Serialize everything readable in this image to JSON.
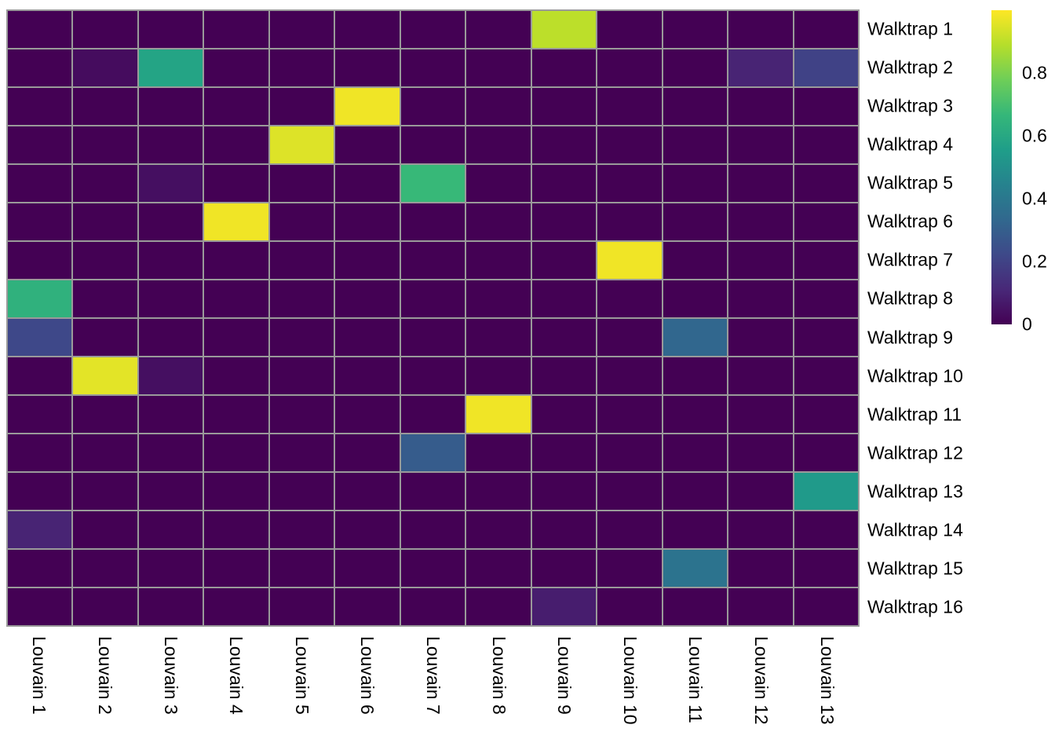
{
  "chart_data": {
    "type": "heatmap",
    "title": "",
    "rows": [
      "Walktrap 1",
      "Walktrap 2",
      "Walktrap 3",
      "Walktrap 4",
      "Walktrap 5",
      "Walktrap 6",
      "Walktrap 7",
      "Walktrap 8",
      "Walktrap 9",
      "Walktrap 10",
      "Walktrap 11",
      "Walktrap 12",
      "Walktrap 13",
      "Walktrap 14",
      "Walktrap 15",
      "Walktrap 16"
    ],
    "columns": [
      "Louvain 1",
      "Louvain 2",
      "Louvain 3",
      "Louvain 4",
      "Louvain 5",
      "Louvain 6",
      "Louvain 7",
      "Louvain 8",
      "Louvain 9",
      "Louvain 10",
      "Louvain 11",
      "Louvain 12",
      "Louvain 13"
    ],
    "matrix": [
      [
        0,
        0,
        0,
        0,
        0,
        0,
        0,
        0,
        0.9,
        0,
        0,
        0,
        0
      ],
      [
        0,
        0.03,
        0.58,
        0,
        0,
        0,
        0,
        0,
        0,
        0,
        0,
        0.1,
        0.2
      ],
      [
        0,
        0,
        0,
        0,
        0,
        0.98,
        0,
        0,
        0,
        0,
        0,
        0,
        0
      ],
      [
        0,
        0,
        0,
        0,
        0.95,
        0,
        0,
        0,
        0,
        0,
        0,
        0,
        0
      ],
      [
        0,
        0,
        0.04,
        0,
        0,
        0,
        0.67,
        0,
        0,
        0,
        0,
        0,
        0
      ],
      [
        0,
        0,
        0,
        0.98,
        0,
        0,
        0,
        0,
        0,
        0,
        0,
        0,
        0
      ],
      [
        0,
        0,
        0,
        0,
        0,
        0,
        0,
        0,
        0,
        0.98,
        0,
        0,
        0
      ],
      [
        0.64,
        0,
        0,
        0,
        0,
        0,
        0,
        0,
        0,
        0,
        0,
        0,
        0
      ],
      [
        0.22,
        0,
        0,
        0,
        0,
        0,
        0,
        0,
        0,
        0,
        0.33,
        0,
        0
      ],
      [
        0,
        0.96,
        0.04,
        0,
        0,
        0,
        0,
        0,
        0,
        0,
        0,
        0,
        0
      ],
      [
        0,
        0,
        0,
        0,
        0,
        0,
        0,
        0.98,
        0,
        0,
        0,
        0,
        0
      ],
      [
        0,
        0,
        0,
        0,
        0,
        0,
        0.29,
        0,
        0,
        0,
        0,
        0,
        0
      ],
      [
        0,
        0,
        0,
        0,
        0,
        0,
        0,
        0,
        0,
        0,
        0,
        0,
        0.54
      ],
      [
        0.1,
        0,
        0,
        0,
        0,
        0,
        0,
        0,
        0,
        0,
        0,
        0,
        0
      ],
      [
        0,
        0,
        0,
        0,
        0,
        0,
        0,
        0,
        0,
        0,
        0.38,
        0,
        0
      ],
      [
        0,
        0,
        0,
        0,
        0,
        0,
        0,
        0,
        0.08,
        0,
        0,
        0,
        0
      ]
    ],
    "colorbar": {
      "colormap": "viridis",
      "range": [
        0,
        1
      ],
      "legend_position": "right",
      "ticks": [
        {
          "label": "0.8",
          "value": 0.8
        },
        {
          "label": "0.6",
          "value": 0.6
        },
        {
          "label": "0.4",
          "value": 0.4
        },
        {
          "label": "0.2",
          "value": 0.2
        },
        {
          "label": "0",
          "value": 0
        }
      ]
    },
    "layout": {
      "grid_on": true,
      "row_labels_position": "right",
      "col_labels_position": "bottom",
      "col_labels_rotation_deg": 90
    },
    "colors": {
      "zero_cell": "#440154",
      "max_cell": "#fde725",
      "grid_line": "#9a9a9a",
      "background": "#ffffff",
      "label_text": "#000000"
    }
  }
}
